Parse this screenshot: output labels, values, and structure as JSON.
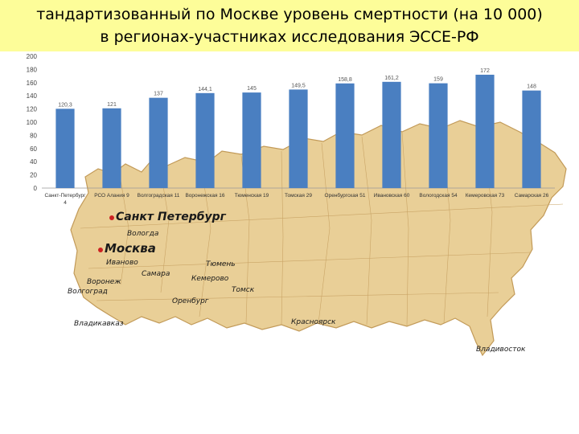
{
  "title": {
    "line1": "тандартизованный по Москве уровень смертности (на 10 000)",
    "line2": "в регионах-участниках исследования ЭССЕ-РФ"
  },
  "colors": {
    "title_bg": "#fdfd99",
    "bar": "#4a7fc1",
    "map_fill": "#e9cf97",
    "map_border": "#c29a58",
    "city_dot": "#cc2222"
  },
  "map_labels": [
    {
      "id": "spb",
      "name": "Санкт      Петербург",
      "size": "big",
      "dot": true
    },
    {
      "id": "vologda",
      "name": "Вологда",
      "size": "small",
      "dot": false
    },
    {
      "id": "moscow",
      "name": "Москва",
      "size": "big",
      "dot": true
    },
    {
      "id": "ivanovo",
      "name": "Иваново",
      "size": "small",
      "dot": false
    },
    {
      "id": "samara",
      "name": "Самара",
      "size": "small",
      "dot": false
    },
    {
      "id": "voronezh",
      "name": "Воронеж",
      "size": "small",
      "dot": false
    },
    {
      "id": "volgograd",
      "name": "Волгоград",
      "size": "small",
      "dot": false
    },
    {
      "id": "tyumen",
      "name": "Тюмень",
      "size": "small",
      "dot": false
    },
    {
      "id": "kemerovo",
      "name": "Кемерово",
      "size": "small",
      "dot": false
    },
    {
      "id": "tomsk",
      "name": "Томск",
      "size": "small",
      "dot": false
    },
    {
      "id": "orenburg",
      "name": "Оренбург",
      "size": "small",
      "dot": false
    },
    {
      "id": "vladikavkaz",
      "name": "Владикавказ",
      "size": "small",
      "dot": false
    },
    {
      "id": "krasnoyarsk",
      "name": "Красноярск",
      "size": "small",
      "dot": false
    },
    {
      "id": "vladivostok",
      "name": "Владивосток",
      "size": "small",
      "dot": false
    }
  ],
  "chart_data": {
    "type": "bar",
    "title": "тандартизованный по Москве уровень смертности (на 10 000) в регионах-участниках исследования ЭССЕ-РФ",
    "categories": [
      "Санкт-Петербург 4",
      "РСО Алания 9",
      "Волгоградская 11",
      "Воронежская 16",
      "Тюменская 19",
      "Томская 29",
      "Оренбургская 51",
      "Ивановская 60",
      "Вологодская 54",
      "Кемеровская 73",
      "Самарская 26"
    ],
    "values": [
      120.3,
      121,
      137,
      144.1,
      145,
      149.5,
      158.8,
      161.2,
      159,
      172,
      148
    ],
    "data_labels": [
      "120,3",
      "121",
      "137",
      "144,1",
      "145",
      "149,5",
      "158,8",
      "161,2",
      "159",
      "172",
      "148"
    ],
    "ylim": [
      0,
      200
    ],
    "yticks": [
      0,
      20,
      40,
      60,
      80,
      100,
      120,
      140,
      160,
      180,
      200
    ],
    "grid": false,
    "xlabel": "",
    "ylabel": ""
  }
}
